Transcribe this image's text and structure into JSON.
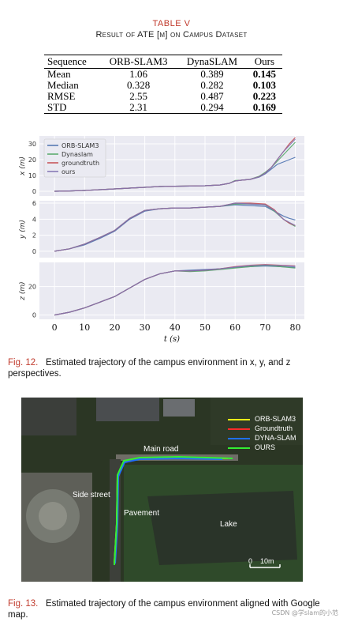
{
  "table": {
    "title": "TABLE V",
    "subtitle": "Result of ATE [m] on Campus Dataset",
    "headers": [
      "Sequence",
      "ORB-SLAM3",
      "DynaSLAM",
      "Ours"
    ],
    "rows": [
      {
        "label": "Mean",
        "orb": "1.06",
        "dyna": "0.389",
        "ours": "0.145"
      },
      {
        "label": "Median",
        "orb": "0.328",
        "dyna": "0.282",
        "ours": "0.103"
      },
      {
        "label": "RMSE",
        "orb": "2.55",
        "dyna": "0.487",
        "ours": "0.223"
      },
      {
        "label": "STD",
        "orb": "2.31",
        "dyna": "0.294",
        "ours": "0.169"
      }
    ]
  },
  "fig12": {
    "caption_label": "Fig. 12.",
    "caption_text": "Estimated trajectory of the campus environment in x, y, and z perspectives."
  },
  "fig13": {
    "caption_label": "Fig. 13.",
    "caption_text": "Estimated trajectory of the campus environment aligned with Google map.",
    "legend": [
      {
        "name": "ORB-SLAM3",
        "color": "#f2f218"
      },
      {
        "name": "Groundtruth",
        "color": "#ff2a2a"
      },
      {
        "name": "DYNA-SLAM",
        "color": "#1f6fff"
      },
      {
        "name": "OURS",
        "color": "#33ee33"
      }
    ],
    "labels": {
      "main_road": "Main road",
      "side_street": "Side street",
      "pavement": "Pavement",
      "lake": "Lake",
      "scale": "0    10m"
    }
  },
  "watermark": "CSDN @学slam的小范",
  "chart_data": [
    {
      "type": "line",
      "ylabel": "x (m)",
      "xlabel": "",
      "xlim": [
        -5,
        83
      ],
      "ylim": [
        -3,
        35
      ],
      "yticks": [
        0,
        10,
        20,
        30
      ],
      "xticks": [
        0,
        10,
        20,
        30,
        40,
        50,
        60,
        70,
        80
      ],
      "legend_position": "top-left",
      "series": [
        {
          "name": "ORB-SLAM3",
          "color": "#4c72b0",
          "x": [
            0,
            5,
            10,
            15,
            20,
            25,
            30,
            35,
            40,
            45,
            50,
            55,
            58,
            60,
            62,
            65,
            68,
            70,
            72,
            74,
            76,
            78,
            80
          ],
          "y": [
            0,
            0.2,
            0.5,
            1,
            1.5,
            2,
            2.5,
            3,
            3.2,
            3.3,
            3.5,
            4,
            5,
            6.5,
            7,
            7.5,
            9,
            11,
            14,
            17,
            18.5,
            20,
            21.5
          ]
        },
        {
          "name": "Dynaslam",
          "color": "#55a868",
          "x": [
            0,
            5,
            10,
            15,
            20,
            25,
            30,
            35,
            40,
            45,
            50,
            55,
            58,
            60,
            62,
            65,
            68,
            70,
            72,
            74,
            76,
            78,
            80
          ],
          "y": [
            0,
            0.2,
            0.5,
            1,
            1.5,
            2,
            2.5,
            3,
            3.2,
            3.3,
            3.5,
            4,
            5,
            6.8,
            7,
            7.6,
            9.5,
            12,
            15,
            19,
            23,
            27,
            31
          ]
        },
        {
          "name": "groundtruth",
          "color": "#c44e52",
          "x": [
            0,
            5,
            10,
            15,
            20,
            25,
            30,
            35,
            40,
            45,
            50,
            55,
            58,
            60,
            62,
            65,
            68,
            70,
            72,
            74,
            76,
            78,
            80
          ],
          "y": [
            0,
            0.2,
            0.5,
            1,
            1.5,
            2,
            2.5,
            3,
            3.2,
            3.3,
            3.5,
            4,
            5,
            6.5,
            7,
            7.5,
            9.2,
            11.5,
            15,
            20,
            25,
            30,
            34
          ]
        },
        {
          "name": "ours",
          "color": "#8172b2",
          "x": [
            0,
            5,
            10,
            15,
            20,
            25,
            30,
            35,
            40,
            45,
            50,
            55,
            58,
            60,
            62,
            65,
            68,
            70,
            72,
            74,
            76,
            78,
            80
          ],
          "y": [
            0,
            0.2,
            0.5,
            1,
            1.5,
            2,
            2.5,
            3,
            3.2,
            3.3,
            3.5,
            4,
            5,
            6.5,
            7,
            7.5,
            9.2,
            11.5,
            15,
            20,
            25,
            29,
            33
          ]
        }
      ]
    },
    {
      "type": "line",
      "ylabel": "y (m)",
      "xlabel": "",
      "xlim": [
        -5,
        83
      ],
      "ylim": [
        -0.8,
        6.3
      ],
      "yticks": [
        0,
        2,
        4,
        6
      ],
      "xticks": [
        0,
        10,
        20,
        30,
        40,
        50,
        60,
        70,
        80
      ],
      "series": [
        {
          "name": "ORB-SLAM3",
          "color": "#4c72b0",
          "x": [
            0,
            5,
            10,
            15,
            20,
            25,
            30,
            35,
            40,
            45,
            50,
            55,
            60,
            65,
            70,
            73,
            76,
            78,
            80
          ],
          "y": [
            0,
            0.3,
            0.8,
            1.6,
            2.5,
            4,
            5,
            5.3,
            5.4,
            5.4,
            5.5,
            5.6,
            5.8,
            5.7,
            5.6,
            5,
            4.4,
            4.1,
            3.9
          ]
        },
        {
          "name": "Dynaslam",
          "color": "#55a868",
          "x": [
            0,
            5,
            10,
            15,
            20,
            25,
            30,
            35,
            40,
            45,
            50,
            55,
            60,
            65,
            70,
            73,
            76,
            78,
            80
          ],
          "y": [
            0,
            0.3,
            0.9,
            1.7,
            2.6,
            4.1,
            5.1,
            5.3,
            5.4,
            5.4,
            5.5,
            5.6,
            5.9,
            5.9,
            5.8,
            5,
            4,
            3.5,
            3.1
          ]
        },
        {
          "name": "groundtruth",
          "color": "#c44e52",
          "x": [
            0,
            5,
            10,
            15,
            20,
            25,
            30,
            35,
            40,
            45,
            50,
            55,
            60,
            65,
            70,
            73,
            76,
            78,
            80
          ],
          "y": [
            0,
            0.3,
            0.9,
            1.7,
            2.6,
            4.1,
            5.1,
            5.3,
            5.4,
            5.4,
            5.5,
            5.6,
            6,
            6,
            5.9,
            5.2,
            4,
            3.5,
            3.2
          ]
        },
        {
          "name": "ours",
          "color": "#8172b2",
          "x": [
            0,
            5,
            10,
            15,
            20,
            25,
            30,
            35,
            40,
            45,
            50,
            55,
            60,
            65,
            70,
            73,
            76,
            78,
            80
          ],
          "y": [
            0,
            0.3,
            0.9,
            1.7,
            2.6,
            4.1,
            5.1,
            5.3,
            5.4,
            5.4,
            5.5,
            5.6,
            6,
            5.9,
            5.8,
            5.1,
            4,
            3.6,
            3.2
          ]
        }
      ]
    },
    {
      "type": "line",
      "ylabel": "z (m)",
      "xlabel": "t (s)",
      "xlim": [
        -5,
        83
      ],
      "ylim": [
        -3,
        37
      ],
      "yticks": [
        0,
        20
      ],
      "xticks": [
        0,
        10,
        20,
        30,
        40,
        50,
        60,
        70,
        80
      ],
      "series": [
        {
          "name": "ORB-SLAM3",
          "color": "#4c72b0",
          "x": [
            0,
            5,
            10,
            15,
            20,
            25,
            30,
            35,
            40,
            45,
            50,
            55,
            60,
            65,
            70,
            75,
            80
          ],
          "y": [
            0,
            2,
            5,
            9,
            13,
            19,
            25,
            29,
            31,
            31.5,
            32,
            32.5,
            33.5,
            34,
            34.5,
            34,
            33.5
          ]
        },
        {
          "name": "Dynaslam",
          "color": "#55a868",
          "x": [
            0,
            5,
            10,
            15,
            20,
            25,
            30,
            35,
            40,
            45,
            50,
            55,
            60,
            65,
            70,
            75,
            80
          ],
          "y": [
            0,
            2,
            5,
            9,
            13,
            19,
            25,
            29,
            31,
            30.5,
            31,
            32,
            33,
            34,
            35,
            34,
            33
          ]
        },
        {
          "name": "groundtruth",
          "color": "#c44e52",
          "x": [
            0,
            5,
            10,
            15,
            20,
            25,
            30,
            35,
            40,
            45,
            50,
            55,
            60,
            65,
            70,
            75,
            80
          ],
          "y": [
            0,
            2,
            5,
            9,
            13,
            19,
            25,
            29,
            31,
            31,
            31.5,
            32.5,
            34,
            35,
            35.5,
            35,
            34.5
          ]
        },
        {
          "name": "ours",
          "color": "#8172b2",
          "x": [
            0,
            5,
            10,
            15,
            20,
            25,
            30,
            35,
            40,
            45,
            50,
            55,
            60,
            65,
            70,
            75,
            80
          ],
          "y": [
            0,
            2,
            5,
            9,
            13,
            19,
            25,
            29,
            31,
            31,
            31.5,
            32.5,
            33.8,
            34.8,
            35.2,
            34.8,
            34.2
          ]
        }
      ]
    }
  ]
}
